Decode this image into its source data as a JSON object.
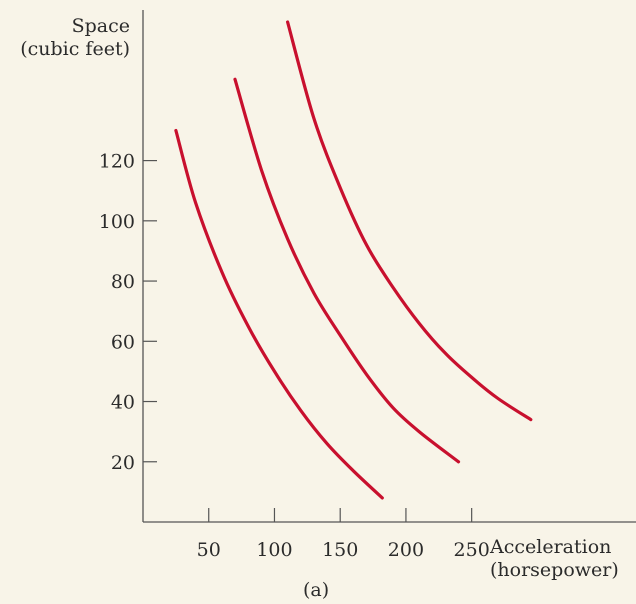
{
  "chart_data": {
    "type": "line",
    "title": "",
    "caption": "(a)",
    "xlabel": [
      "Acceleration",
      "(horsepower)"
    ],
    "ylabel": [
      "Space",
      "(cubic feet)"
    ],
    "x_ticks": [
      50,
      100,
      150,
      200,
      250
    ],
    "y_ticks": [
      20,
      40,
      60,
      80,
      100,
      120
    ],
    "xlim": [
      0,
      375
    ],
    "ylim": [
      0,
      170
    ],
    "grid": false,
    "legend": "none",
    "line_color": "#c8102e",
    "series": [
      {
        "x": [
          25,
          40,
          60,
          80,
          100,
          120,
          140,
          160,
          182
        ],
        "y": [
          130,
          106,
          83,
          65,
          50,
          37,
          26,
          17,
          8
        ]
      },
      {
        "x": [
          70,
          90,
          110,
          130,
          150,
          170,
          190,
          210,
          240
        ],
        "y": [
          147,
          117,
          94,
          76,
          62,
          49,
          38,
          30,
          20
        ]
      },
      {
        "x": [
          110,
          130,
          150,
          170,
          190,
          210,
          230,
          250,
          270,
          295
        ],
        "y": [
          166,
          134,
          111,
          92,
          78,
          66,
          56,
          48,
          41,
          34
        ]
      }
    ]
  }
}
